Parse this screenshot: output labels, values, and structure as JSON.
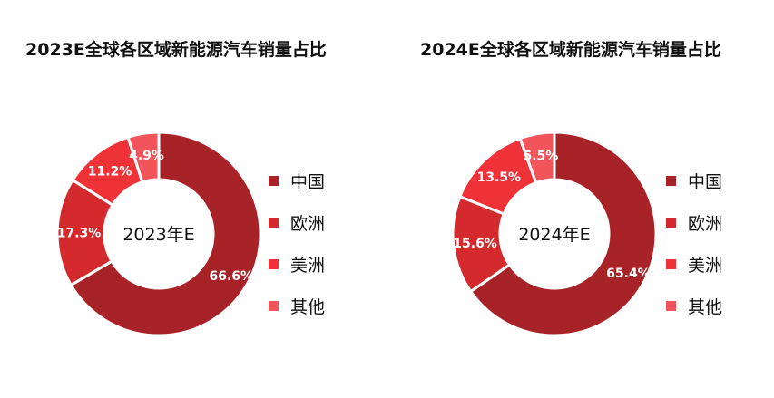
{
  "chart_data": [
    {
      "type": "pie",
      "title": "2023E全球各区域新能源汽车销量占比",
      "center_label": "2023年E",
      "categories": [
        "中国",
        "欧洲",
        "美洲",
        "其他"
      ],
      "values": [
        66.6,
        17.3,
        11.2,
        4.9
      ],
      "value_labels": [
        "66.6%",
        "17.3%",
        "11.2%",
        "4.9%"
      ],
      "colors": [
        "#a82328",
        "#d42a2d",
        "#ee3237",
        "#f2545b"
      ],
      "legend_position": "right"
    },
    {
      "type": "pie",
      "title": "2024E全球各区域新能源汽车销量占比",
      "center_label": "2024年E",
      "categories": [
        "中国",
        "欧洲",
        "美洲",
        "其他"
      ],
      "values": [
        65.4,
        15.6,
        13.5,
        5.5
      ],
      "value_labels": [
        "65.4%",
        "15.6%",
        "13.5%",
        "5.5%"
      ],
      "colors": [
        "#a82328",
        "#d42a2d",
        "#ee3237",
        "#f2545b"
      ],
      "legend_position": "right"
    }
  ]
}
